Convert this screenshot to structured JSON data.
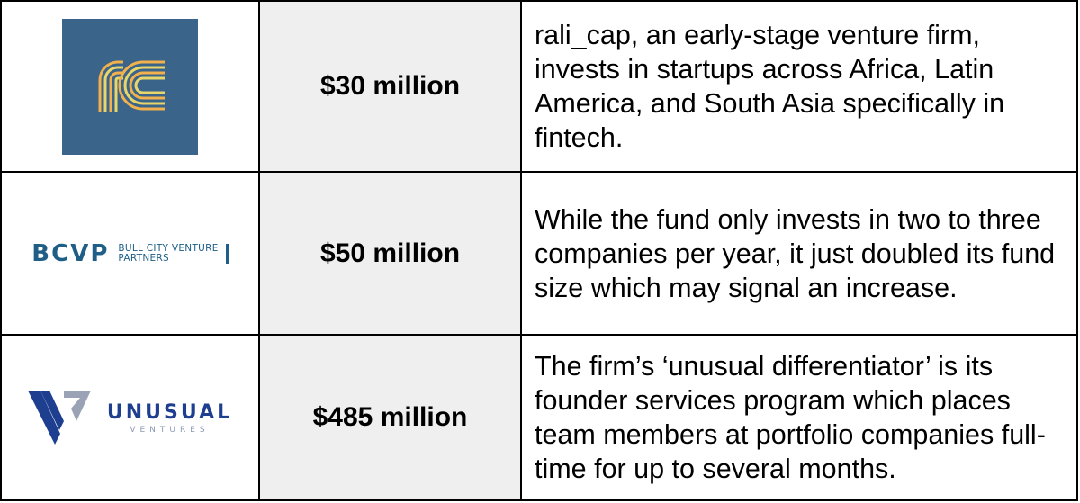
{
  "rows": [
    {
      "logo": {
        "name": "rali_cap",
        "icon": "rc-logo-icon",
        "colors": {
          "bg": "#3a6489"
        }
      },
      "amount": "$30 million",
      "description": "rali_cap, an early-stage venture firm, invests in startups across Africa, Latin America, and South Asia specifically in fintech."
    },
    {
      "logo": {
        "name": "BCVP",
        "main": "BCVP",
        "sub_line1": "BULL CITY VENTURE",
        "sub_line2": "PARTNERS",
        "colors": {
          "text": "#1f5f87"
        }
      },
      "amount": "$50 million",
      "description": "While the fund only invests in two to three companies per year, it just doubled its fund size which may signal an increase."
    },
    {
      "logo": {
        "name": "Unusual Ventures",
        "main": "UNUSUAL",
        "sub": "VENTURES",
        "icon": "unusual-v-icon",
        "colors": {
          "text": "#1e3f8f"
        }
      },
      "amount": "$485 million",
      "description": "The firm’s ‘unusual differentiator’ is its founder services program which places team members at portfolio companies full-time for up to several months."
    }
  ],
  "colors": {
    "amount_bg": "#efefef",
    "border": "#000000"
  }
}
